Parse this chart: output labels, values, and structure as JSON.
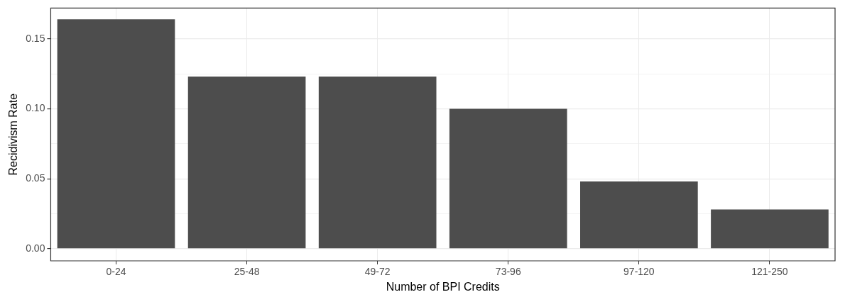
{
  "chart_data": {
    "type": "bar",
    "xlabel": "Number of BPI Credits",
    "ylabel": "Recidivism Rate",
    "categories": [
      "0-24",
      "25-48",
      "49-72",
      "73-96",
      "97-120",
      "121-250"
    ],
    "values": [
      0.164,
      0.123,
      0.123,
      0.1,
      0.048,
      0.028
    ],
    "color": "#4d4d4d",
    "ylim": [
      -0.0087,
      0.172
    ],
    "yticks": [
      {
        "value": 0,
        "label": "0.00"
      },
      {
        "value": 0.025,
        "label": null
      },
      {
        "value": 0.05,
        "label": "0.05"
      },
      {
        "value": 0.075,
        "label": null
      },
      {
        "value": 0.1,
        "label": "0.10"
      },
      {
        "value": 0.125,
        "label": null
      },
      {
        "value": 0.15,
        "label": "0.15"
      }
    ],
    "grid": true
  }
}
